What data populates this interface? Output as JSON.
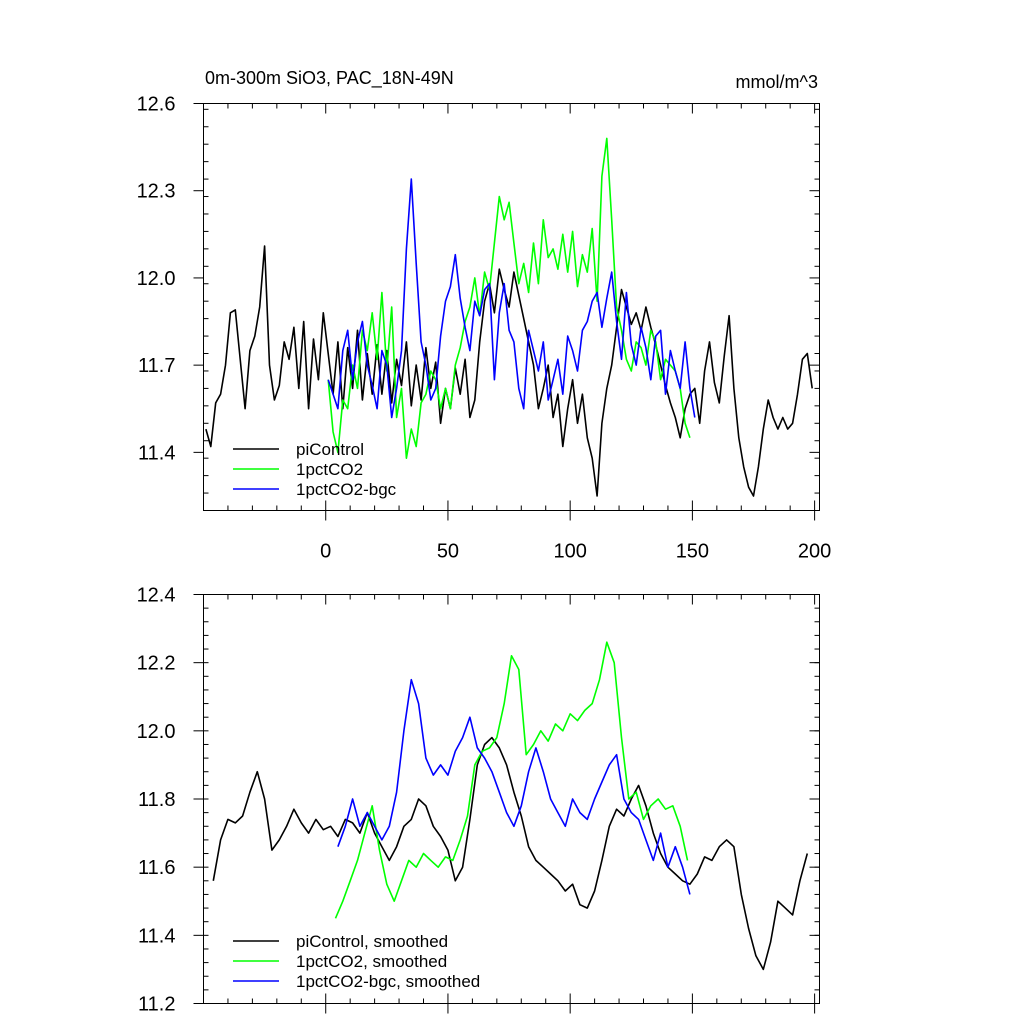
{
  "chart_data": [
    {
      "type": "line",
      "title": "0m-300m SiO3, PAC_18N-49N",
      "units": "mmol/m^3",
      "xlim": [
        -50,
        202
      ],
      "ylim": [
        11.2,
        12.6
      ],
      "xticks": [
        0,
        50,
        100,
        150,
        200
      ],
      "xticklabels": [
        "0",
        "50",
        "100",
        "150",
        "200"
      ],
      "yticks": [
        11.4,
        11.7,
        12.0,
        12.3,
        12.6
      ],
      "yticklabels": [
        "11.4",
        "11.7",
        "12.0",
        "12.3",
        "12.6"
      ],
      "legend_position": "bottom-left",
      "series": [
        {
          "name": "piControl",
          "color": "#000000",
          "x": [
            -49,
            -47,
            -45,
            -43,
            -41,
            -39,
            -37,
            -35,
            -33,
            -31,
            -29,
            -27,
            -25,
            -23,
            -21,
            -19,
            -17,
            -15,
            -13,
            -11,
            -9,
            -7,
            -5,
            -3,
            -1,
            1,
            3,
            5,
            7,
            9,
            11,
            13,
            15,
            17,
            19,
            21,
            23,
            25,
            27,
            29,
            31,
            33,
            35,
            37,
            39,
            41,
            43,
            45,
            47,
            49,
            51,
            53,
            55,
            57,
            59,
            61,
            63,
            65,
            67,
            69,
            71,
            73,
            75,
            77,
            79,
            81,
            83,
            85,
            87,
            89,
            91,
            93,
            95,
            97,
            99,
            101,
            103,
            105,
            107,
            109,
            111,
            113,
            115,
            117,
            119,
            121,
            123,
            125,
            127,
            129,
            131,
            133,
            135,
            137,
            139,
            141,
            143,
            145,
            147,
            149,
            151,
            153,
            155,
            157,
            159,
            161,
            163,
            165,
            167,
            169,
            171,
            173,
            175,
            177,
            179,
            181,
            183,
            185,
            187,
            189,
            191,
            193,
            195,
            197,
            199
          ],
          "values": [
            11.48,
            11.42,
            11.57,
            11.6,
            11.7,
            11.88,
            11.89,
            11.72,
            11.55,
            11.75,
            11.8,
            11.9,
            12.11,
            11.7,
            11.58,
            11.63,
            11.78,
            11.72,
            11.83,
            11.62,
            11.85,
            11.55,
            11.79,
            11.65,
            11.88,
            11.74,
            11.6,
            11.78,
            11.55,
            11.76,
            11.62,
            11.82,
            11.58,
            11.74,
            11.6,
            11.77,
            11.6,
            11.75,
            11.57,
            11.72,
            11.63,
            11.78,
            11.56,
            11.7,
            11.58,
            11.76,
            11.62,
            11.71,
            11.5,
            11.62,
            11.55,
            11.69,
            11.6,
            11.72,
            11.52,
            11.58,
            11.78,
            11.92,
            11.98,
            11.88,
            12.03,
            11.96,
            11.9,
            12.02,
            11.94,
            11.86,
            11.78,
            11.7,
            11.55,
            11.62,
            11.7,
            11.52,
            11.6,
            11.42,
            11.55,
            11.65,
            11.5,
            11.6,
            11.45,
            11.38,
            11.25,
            11.5,
            11.62,
            11.7,
            11.83,
            11.96,
            11.9,
            11.84,
            11.88,
            11.82,
            11.9,
            11.83,
            11.77,
            11.7,
            11.63,
            11.57,
            11.52,
            11.45,
            11.55,
            11.6,
            11.62,
            11.5,
            11.68,
            11.78,
            11.64,
            11.57,
            11.73,
            11.87,
            11.62,
            11.45,
            11.35,
            11.28,
            11.25,
            11.35,
            11.48,
            11.58,
            11.52,
            11.48,
            11.52,
            11.48,
            11.5,
            11.6,
            11.72,
            11.74,
            11.62
          ]
        },
        {
          "name": "1pctCO2",
          "color": "#00ff00",
          "x": [
            1,
            3,
            5,
            7,
            9,
            11,
            13,
            15,
            17,
            19,
            21,
            23,
            25,
            27,
            29,
            31,
            33,
            35,
            37,
            39,
            41,
            43,
            45,
            47,
            49,
            51,
            53,
            55,
            57,
            59,
            61,
            63,
            65,
            67,
            69,
            71,
            73,
            75,
            77,
            79,
            81,
            83,
            85,
            87,
            89,
            91,
            93,
            95,
            97,
            99,
            101,
            103,
            105,
            107,
            109,
            111,
            113,
            115,
            117,
            119,
            121,
            123,
            125,
            127,
            129,
            131,
            133,
            135,
            137,
            139,
            141,
            143,
            145,
            147,
            149
          ],
          "values": [
            11.65,
            11.47,
            11.4,
            11.58,
            11.55,
            11.7,
            11.62,
            11.82,
            11.75,
            11.88,
            11.72,
            11.95,
            11.68,
            11.9,
            11.52,
            11.62,
            11.38,
            11.48,
            11.42,
            11.57,
            11.6,
            11.68,
            11.65,
            11.55,
            11.62,
            11.55,
            11.7,
            11.76,
            11.85,
            11.9,
            12.0,
            11.87,
            12.02,
            11.96,
            12.12,
            12.28,
            12.2,
            12.26,
            12.12,
            11.98,
            12.05,
            11.95,
            12.12,
            11.98,
            12.2,
            12.07,
            12.1,
            12.03,
            12.15,
            12.02,
            12.16,
            11.97,
            12.08,
            12.02,
            12.17,
            11.92,
            12.35,
            12.48,
            12.2,
            11.9,
            11.82,
            11.72,
            11.68,
            11.78,
            11.76,
            11.7,
            11.82,
            11.78,
            11.65,
            11.72,
            11.7,
            11.68,
            11.62,
            11.5,
            11.45
          ]
        },
        {
          "name": "1pctCO2-bgc",
          "color": "#0000ff",
          "x": [
            1,
            3,
            5,
            7,
            9,
            11,
            13,
            15,
            17,
            19,
            21,
            23,
            25,
            27,
            29,
            31,
            33,
            35,
            37,
            39,
            41,
            43,
            45,
            47,
            49,
            51,
            53,
            55,
            57,
            59,
            61,
            63,
            65,
            67,
            69,
            71,
            73,
            75,
            77,
            79,
            81,
            83,
            85,
            87,
            89,
            91,
            93,
            95,
            97,
            99,
            101,
            103,
            105,
            107,
            109,
            111,
            113,
            115,
            117,
            119,
            121,
            123,
            125,
            127,
            129,
            131,
            133,
            135,
            137,
            139,
            141,
            143,
            145,
            147,
            149,
            151
          ],
          "values": [
            11.65,
            11.6,
            11.55,
            11.75,
            11.82,
            11.65,
            11.78,
            11.85,
            11.7,
            11.63,
            11.55,
            11.75,
            11.7,
            11.52,
            11.62,
            11.75,
            12.1,
            12.34,
            12.05,
            11.78,
            11.7,
            11.58,
            11.62,
            11.8,
            11.92,
            11.97,
            12.08,
            11.93,
            11.83,
            11.75,
            11.92,
            11.87,
            11.96,
            11.98,
            11.65,
            11.88,
            11.98,
            11.82,
            11.78,
            11.62,
            11.55,
            11.82,
            11.75,
            11.68,
            11.78,
            11.58,
            11.65,
            11.72,
            11.6,
            11.8,
            11.75,
            11.68,
            11.82,
            11.85,
            11.92,
            11.95,
            11.83,
            11.93,
            12.02,
            11.85,
            11.72,
            11.95,
            11.77,
            11.7,
            11.83,
            11.76,
            11.65,
            11.8,
            11.82,
            11.6,
            11.75,
            11.68,
            11.62,
            11.78,
            11.62,
            11.52
          ]
        }
      ]
    },
    {
      "type": "line",
      "title": "",
      "xlim": [
        -50,
        202
      ],
      "ylim": [
        11.2,
        12.4
      ],
      "xticks": [
        0,
        50,
        100,
        150,
        200
      ],
      "xticklabels": [],
      "yticks": [
        11.2,
        11.4,
        11.6,
        11.8,
        12.0,
        12.2,
        12.4
      ],
      "yticklabels": [
        "11.2",
        "11.4",
        "11.6",
        "11.8",
        "12.0",
        "12.2",
        "12.4"
      ],
      "legend_position": "bottom-left",
      "series": [
        {
          "name": "piControl, smoothed",
          "color": "#000000",
          "x": [
            -46,
            -43,
            -40,
            -37,
            -34,
            -31,
            -28,
            -25,
            -22,
            -19,
            -16,
            -13,
            -10,
            -7,
            -4,
            -1,
            2,
            5,
            8,
            11,
            14,
            17,
            20,
            23,
            26,
            29,
            32,
            35,
            38,
            41,
            44,
            47,
            50,
            53,
            56,
            59,
            62,
            65,
            68,
            71,
            74,
            77,
            80,
            83,
            86,
            89,
            92,
            95,
            98,
            101,
            104,
            107,
            110,
            113,
            116,
            119,
            122,
            125,
            128,
            131,
            134,
            137,
            140,
            143,
            146,
            149,
            152,
            155,
            158,
            161,
            164,
            167,
            170,
            173,
            176,
            179,
            182,
            185,
            188,
            191,
            194,
            197
          ],
          "values": [
            11.56,
            11.68,
            11.74,
            11.73,
            11.75,
            11.82,
            11.88,
            11.8,
            11.65,
            11.68,
            11.72,
            11.77,
            11.73,
            11.7,
            11.74,
            11.71,
            11.72,
            11.69,
            11.74,
            11.73,
            11.7,
            11.76,
            11.7,
            11.66,
            11.62,
            11.66,
            11.72,
            11.74,
            11.8,
            11.78,
            11.72,
            11.69,
            11.65,
            11.56,
            11.6,
            11.74,
            11.9,
            11.96,
            11.98,
            11.95,
            11.9,
            11.82,
            11.75,
            11.66,
            11.62,
            11.6,
            11.58,
            11.56,
            11.53,
            11.55,
            11.49,
            11.48,
            11.53,
            11.62,
            11.72,
            11.77,
            11.75,
            11.8,
            11.84,
            11.78,
            11.7,
            11.64,
            11.6,
            11.58,
            11.56,
            11.55,
            11.58,
            11.63,
            11.62,
            11.66,
            11.68,
            11.66,
            11.52,
            11.42,
            11.34,
            11.3,
            11.38,
            11.5,
            11.48,
            11.46,
            11.56,
            11.64
          ]
        },
        {
          "name": "1pctCO2, smoothed",
          "color": "#00ff00",
          "x": [
            4,
            7,
            10,
            13,
            16,
            19,
            22,
            25,
            28,
            31,
            34,
            37,
            40,
            43,
            46,
            49,
            52,
            55,
            58,
            61,
            64,
            67,
            70,
            73,
            76,
            79,
            82,
            85,
            88,
            91,
            94,
            97,
            100,
            103,
            106,
            109,
            112,
            115,
            118,
            121,
            124,
            127,
            130,
            133,
            136,
            139,
            142,
            145,
            148
          ],
          "values": [
            11.45,
            11.5,
            11.56,
            11.62,
            11.7,
            11.78,
            11.65,
            11.55,
            11.5,
            11.56,
            11.62,
            11.6,
            11.64,
            11.62,
            11.6,
            11.63,
            11.62,
            11.68,
            11.75,
            11.9,
            11.94,
            11.95,
            11.98,
            12.08,
            12.22,
            12.18,
            11.93,
            11.96,
            12.0,
            11.97,
            12.02,
            12.0,
            12.05,
            12.03,
            12.06,
            12.08,
            12.15,
            12.26,
            12.2,
            11.98,
            11.8,
            11.82,
            11.74,
            11.78,
            11.8,
            11.77,
            11.78,
            11.72,
            11.62
          ]
        },
        {
          "name": "1pctCO2-bgc, smoothed",
          "color": "#0000ff",
          "x": [
            5,
            8,
            11,
            14,
            17,
            20,
            23,
            26,
            29,
            32,
            35,
            38,
            41,
            44,
            47,
            50,
            53,
            56,
            59,
            62,
            65,
            68,
            71,
            74,
            77,
            80,
            83,
            86,
            89,
            92,
            95,
            98,
            101,
            104,
            107,
            110,
            113,
            116,
            119,
            122,
            125,
            128,
            131,
            134,
            137,
            140,
            143,
            146,
            149
          ],
          "values": [
            11.66,
            11.72,
            11.8,
            11.72,
            11.76,
            11.72,
            11.68,
            11.72,
            11.82,
            12.0,
            12.15,
            12.08,
            11.92,
            11.87,
            11.9,
            11.87,
            11.94,
            11.98,
            12.04,
            11.95,
            11.92,
            11.88,
            11.82,
            11.76,
            11.72,
            11.78,
            11.88,
            11.95,
            11.88,
            11.8,
            11.76,
            11.72,
            11.8,
            11.76,
            11.74,
            11.8,
            11.85,
            11.9,
            11.93,
            11.8,
            11.76,
            11.74,
            11.68,
            11.62,
            11.7,
            11.6,
            11.66,
            11.6,
            11.52
          ]
        }
      ]
    }
  ]
}
